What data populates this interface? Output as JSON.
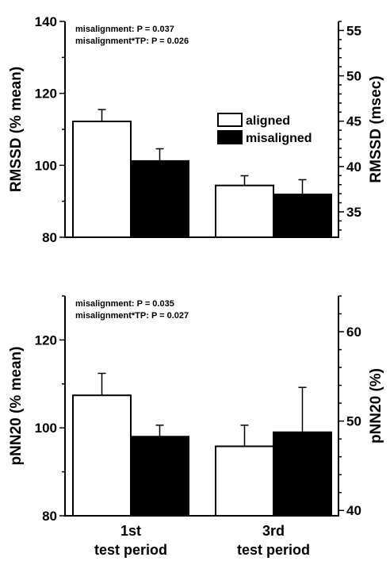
{
  "chart_data": [
    {
      "type": "bar",
      "categories": [
        "1st",
        "3rd"
      ],
      "series": [
        {
          "name": "aligned",
          "values": [
            112.2,
            94.4
          ],
          "errors": [
            3.3,
            2.7
          ],
          "color": "#ffffff"
        },
        {
          "name": "misaligned",
          "values": [
            101.2,
            91.9
          ],
          "errors": [
            3.4,
            4.1
          ],
          "color": "#000000"
        }
      ],
      "ylabel": "RMSSD (% mean)",
      "ylim": [
        80,
        140
      ],
      "yticks": [
        80,
        100,
        120,
        140
      ],
      "y2label": "RMSSD (msec)",
      "y2ticks": [
        35,
        40,
        45,
        50,
        55
      ],
      "y2lim": [
        32.2,
        56.0
      ],
      "annotations": [
        "misalignment: P = 0.037",
        "misalignment*TP: P = 0.026"
      ],
      "legend_position": "inside-right",
      "grid": false
    },
    {
      "type": "bar",
      "categories": [
        "1st",
        "3rd"
      ],
      "series": [
        {
          "name": "aligned",
          "values": [
            107.4,
            95.8
          ],
          "errors": [
            5.0,
            4.8
          ],
          "color": "#ffffff"
        },
        {
          "name": "misaligned",
          "values": [
            98.0,
            99.0
          ],
          "errors": [
            2.6,
            10.2
          ],
          "color": "#000000"
        }
      ],
      "ylabel": "pNN20 (% mean)",
      "ylim": [
        80,
        130
      ],
      "yticks": [
        80,
        100,
        120
      ],
      "y2label": "pNN20 (%)",
      "y2ticks": [
        40,
        50,
        60
      ],
      "y2lim": [
        39.4,
        64.0
      ],
      "annotations": [
        "misalignment: P = 0.035",
        "misalignment*TP: P = 0.027"
      ],
      "grid": false
    }
  ],
  "x_axis": {
    "categories": [
      "1st",
      "3rd"
    ],
    "label": "test period"
  },
  "legend": {
    "items": [
      {
        "label": "aligned",
        "color": "#ffffff"
      },
      {
        "label": "misaligned",
        "color": "#000000"
      }
    ]
  }
}
